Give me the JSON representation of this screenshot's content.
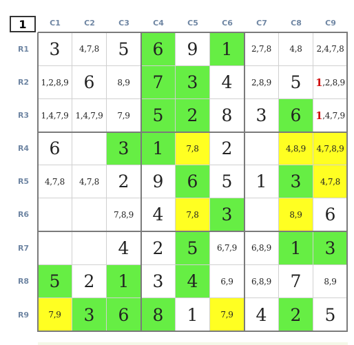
{
  "corner_label": "1",
  "col_headers": [
    "C1",
    "C2",
    "C3",
    "C4",
    "C5",
    "C6",
    "C7",
    "C8",
    "C9"
  ],
  "row_headers": [
    "R1",
    "R2",
    "R3",
    "R4",
    "R5",
    "R6",
    "R7",
    "R8",
    "R9"
  ],
  "colors": {
    "green": "#66ee44",
    "yellow": "#ffff22",
    "white": "#ffffff",
    "red": "#d01010"
  },
  "cells": [
    [
      {
        "v": "3",
        "t": "big",
        "c": "white"
      },
      {
        "v": "4,7,8",
        "t": "small",
        "c": "white"
      },
      {
        "v": "5",
        "t": "big",
        "c": "white"
      },
      {
        "v": "6",
        "t": "big",
        "c": "green"
      },
      {
        "v": "9",
        "t": "big",
        "c": "white"
      },
      {
        "v": "1",
        "t": "big",
        "c": "green"
      },
      {
        "v": "2,7,8",
        "t": "small",
        "c": "white"
      },
      {
        "v": "4,8",
        "t": "small",
        "c": "white"
      },
      {
        "v": "2,4,7,8",
        "t": "small",
        "c": "white"
      }
    ],
    [
      {
        "v": "1,2,8,9",
        "t": "small",
        "c": "white"
      },
      {
        "v": "6",
        "t": "big",
        "c": "white"
      },
      {
        "v": "8,9",
        "t": "small",
        "c": "white"
      },
      {
        "v": "7",
        "t": "big",
        "c": "green"
      },
      {
        "v": "3",
        "t": "big",
        "c": "green"
      },
      {
        "v": "4",
        "t": "big",
        "c": "white"
      },
      {
        "v": "2,8,9",
        "t": "small",
        "c": "white"
      },
      {
        "v": "5",
        "t": "big",
        "c": "white"
      },
      {
        "v": "1,2,8,9",
        "t": "small",
        "c": "white",
        "red": "1",
        "rest": ",2,8,9"
      }
    ],
    [
      {
        "v": "1,4,7,9",
        "t": "small",
        "c": "white"
      },
      {
        "v": "1,4,7,9",
        "t": "small",
        "c": "white"
      },
      {
        "v": "7,9",
        "t": "small",
        "c": "white"
      },
      {
        "v": "5",
        "t": "big",
        "c": "green"
      },
      {
        "v": "2",
        "t": "big",
        "c": "green"
      },
      {
        "v": "8",
        "t": "big",
        "c": "white"
      },
      {
        "v": "3",
        "t": "big",
        "c": "white"
      },
      {
        "v": "6",
        "t": "big",
        "c": "green"
      },
      {
        "v": "1,4,7,9",
        "t": "small",
        "c": "white",
        "red": "1",
        "rest": ",4,7,9"
      }
    ],
    [
      {
        "v": "6",
        "t": "big",
        "c": "white"
      },
      {
        "v": "",
        "t": "small",
        "c": "white"
      },
      {
        "v": "3",
        "t": "big",
        "c": "green"
      },
      {
        "v": "1",
        "t": "big",
        "c": "green"
      },
      {
        "v": "7,8",
        "t": "small",
        "c": "yellow"
      },
      {
        "v": "2",
        "t": "big",
        "c": "white"
      },
      {
        "v": "",
        "t": "small",
        "c": "white"
      },
      {
        "v": "4,8,9",
        "t": "small",
        "c": "yellow"
      },
      {
        "v": "4,7,8,9",
        "t": "small",
        "c": "yellow"
      }
    ],
    [
      {
        "v": "4,7,8",
        "t": "small",
        "c": "white"
      },
      {
        "v": "4,7,8",
        "t": "small",
        "c": "white"
      },
      {
        "v": "2",
        "t": "big",
        "c": "white"
      },
      {
        "v": "9",
        "t": "big",
        "c": "white"
      },
      {
        "v": "6",
        "t": "big",
        "c": "green"
      },
      {
        "v": "5",
        "t": "big",
        "c": "white"
      },
      {
        "v": "1",
        "t": "big",
        "c": "white"
      },
      {
        "v": "3",
        "t": "big",
        "c": "green"
      },
      {
        "v": "4,7,8",
        "t": "small",
        "c": "yellow"
      }
    ],
    [
      {
        "v": "",
        "t": "small",
        "c": "white"
      },
      {
        "v": "",
        "t": "small",
        "c": "white"
      },
      {
        "v": "7,8,9",
        "t": "small",
        "c": "white"
      },
      {
        "v": "4",
        "t": "big",
        "c": "white"
      },
      {
        "v": "7,8",
        "t": "small",
        "c": "yellow"
      },
      {
        "v": "3",
        "t": "big",
        "c": "green"
      },
      {
        "v": "",
        "t": "small",
        "c": "white"
      },
      {
        "v": "8,9",
        "t": "small",
        "c": "yellow"
      },
      {
        "v": "6",
        "t": "big",
        "c": "white"
      }
    ],
    [
      {
        "v": "",
        "t": "small",
        "c": "white"
      },
      {
        "v": "",
        "t": "small",
        "c": "white"
      },
      {
        "v": "4",
        "t": "big",
        "c": "white"
      },
      {
        "v": "2",
        "t": "big",
        "c": "white"
      },
      {
        "v": "5",
        "t": "big",
        "c": "green"
      },
      {
        "v": "6,7,9",
        "t": "small",
        "c": "white"
      },
      {
        "v": "6,8,9",
        "t": "small",
        "c": "white"
      },
      {
        "v": "1",
        "t": "big",
        "c": "green"
      },
      {
        "v": "3",
        "t": "big",
        "c": "green"
      }
    ],
    [
      {
        "v": "5",
        "t": "big",
        "c": "green"
      },
      {
        "v": "2",
        "t": "big",
        "c": "white"
      },
      {
        "v": "1",
        "t": "big",
        "c": "green"
      },
      {
        "v": "3",
        "t": "big",
        "c": "white"
      },
      {
        "v": "4",
        "t": "big",
        "c": "green"
      },
      {
        "v": "6,9",
        "t": "small",
        "c": "white"
      },
      {
        "v": "6,8,9",
        "t": "small",
        "c": "white"
      },
      {
        "v": "7",
        "t": "big",
        "c": "white"
      },
      {
        "v": "8,9",
        "t": "small",
        "c": "white"
      }
    ],
    [
      {
        "v": "7,9",
        "t": "small",
        "c": "yellow"
      },
      {
        "v": "3",
        "t": "big",
        "c": "green"
      },
      {
        "v": "6",
        "t": "big",
        "c": "green"
      },
      {
        "v": "8",
        "t": "big",
        "c": "green"
      },
      {
        "v": "1",
        "t": "big",
        "c": "white"
      },
      {
        "v": "7,9",
        "t": "small",
        "c": "yellow"
      },
      {
        "v": "4",
        "t": "big",
        "c": "white"
      },
      {
        "v": "2",
        "t": "big",
        "c": "green"
      },
      {
        "v": "5",
        "t": "big",
        "c": "white"
      }
    ]
  ]
}
